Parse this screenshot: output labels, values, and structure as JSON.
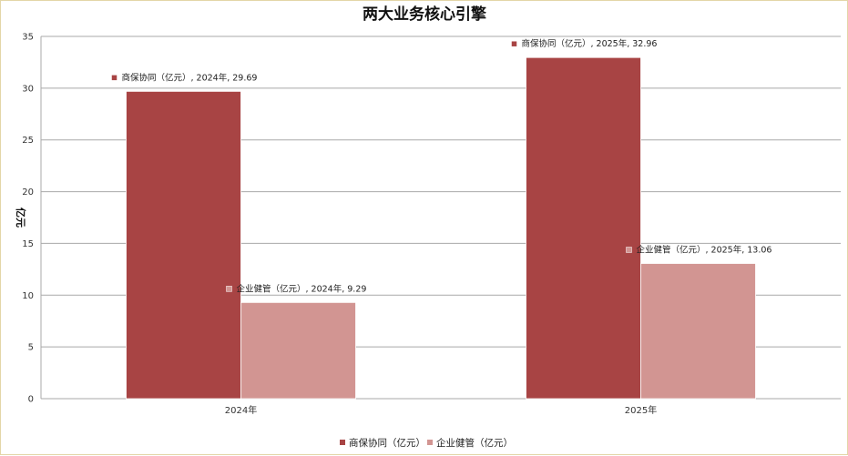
{
  "chart_data": {
    "type": "bar",
    "title": "两大业务核心引擎",
    "xlabel": "",
    "ylabel": "亿元",
    "ylim": [
      0,
      35
    ],
    "yticks": [
      0,
      5,
      10,
      15,
      20,
      25,
      30,
      35
    ],
    "grid": true,
    "legend_position": "bottom",
    "categories": [
      "2024年",
      "2025年"
    ],
    "series": [
      {
        "name": "商保协同（亿元）",
        "color": "#a84444",
        "values": [
          29.69,
          32.96
        ],
        "labels": [
          "商保协同（亿元）, 2024年, 29.69",
          "商保协同（亿元）, 2025年, 32.96"
        ]
      },
      {
        "name": "企业健管（亿元）",
        "color": "#d29592",
        "values": [
          9.29,
          13.06
        ],
        "labels": [
          "企业健管（亿元）, 2024年, 9.29",
          "企业健管（亿元）, 2025年, 13.06"
        ]
      }
    ]
  }
}
